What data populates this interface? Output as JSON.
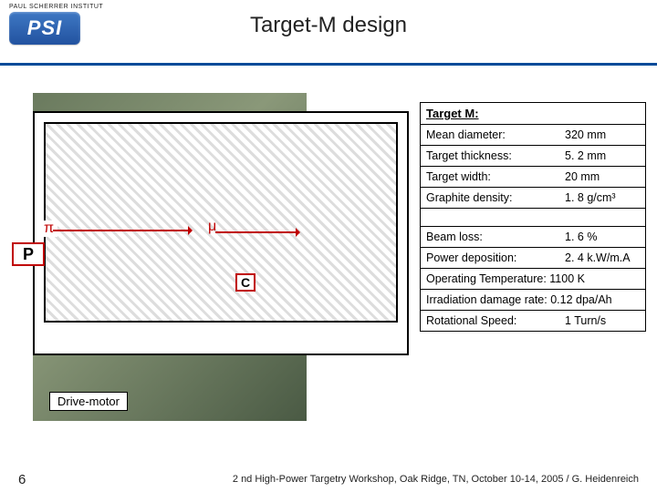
{
  "header": {
    "institute": "PAUL SCHERRER INSTITUT",
    "logo_text": "PSI",
    "title": "Target-M design",
    "accent_color": "#004a99"
  },
  "drawing": {
    "labels": {
      "pi": "π",
      "mu": "μ",
      "carbon": "C",
      "proton": "P"
    },
    "annotation": "Drive-motor",
    "annotation_color": "#c00000"
  },
  "table": {
    "heading": "Target M:",
    "rows": [
      {
        "label": "Mean diameter:",
        "value": "320 mm"
      },
      {
        "label": "Target thickness:",
        "value": "5. 2 mm"
      },
      {
        "label": "Target width:",
        "value": "20 mm"
      },
      {
        "label": "Graphite density:",
        "value": "1. 8 g/cm³"
      },
      {
        "label": "",
        "value": ""
      },
      {
        "label": "Beam loss:",
        "value": "1. 6 %"
      },
      {
        "label": "Power deposition:",
        "value": "2. 4 k.W/m.A"
      },
      {
        "label": "Operating Temperature: 1100 K",
        "value": "",
        "full": true
      },
      {
        "label": "Irradiation damage rate: 0.12 dpa/Ah",
        "value": "",
        "full": true
      },
      {
        "label": "Rotational Speed:",
        "value": "1 Turn/s"
      }
    ]
  },
  "footer": {
    "page": "6",
    "text": "2 nd High-Power Targetry Workshop, Oak Ridge, TN, October 10-14, 2005   /   G. Heidenreich"
  }
}
